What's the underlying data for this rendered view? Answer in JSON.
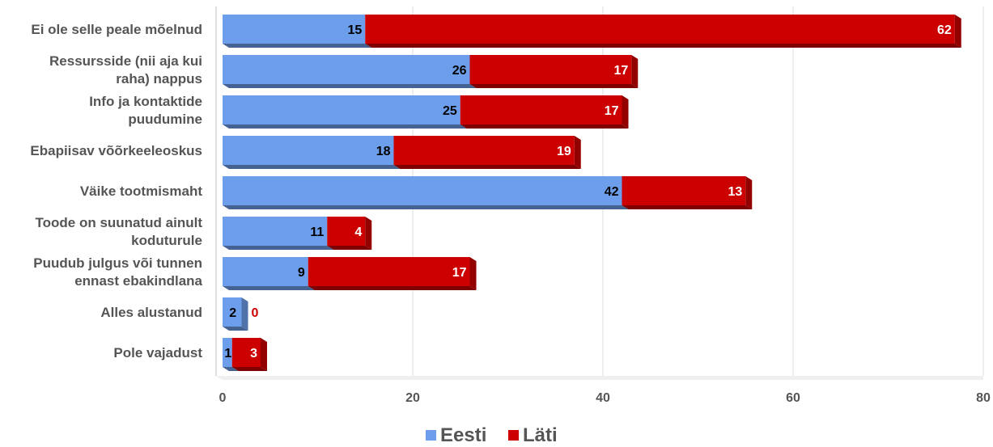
{
  "chart_data": {
    "type": "bar",
    "orientation": "horizontal",
    "stacked": true,
    "style": "3d",
    "categories": [
      "Ei ole selle peale mõelnud",
      "Ressursside (nii aja kui raha) nappus",
      "Info ja kontaktide puudumine",
      "Ebapiisav võõrkeeleoskus",
      "Väike tootmismaht",
      "Toode on suunatud ainult koduturule",
      "Puudub julgus või tunnen ennast ebakindlana",
      "Alles alustanud",
      "Pole vajadust"
    ],
    "category_lines": [
      [
        "Ei ole selle peale mõelnud"
      ],
      [
        "Ressursside (nii aja kui",
        "raha) nappus"
      ],
      [
        "Info ja kontaktide",
        "puudumine"
      ],
      [
        "Ebapiisav võõrkeeleoskus"
      ],
      [
        "Väike tootmismaht"
      ],
      [
        "Toode on suunatud ainult",
        "koduturule"
      ],
      [
        "Puudub julgus või tunnen",
        "ennast ebakindlana"
      ],
      [
        "Alles alustanud"
      ],
      [
        "Pole vajadust"
      ]
    ],
    "series": [
      {
        "name": "Eesti",
        "color": "#6d9eeb",
        "values": [
          15,
          26,
          25,
          18,
          42,
          11,
          9,
          2,
          1
        ],
        "labels": [
          "15",
          "26",
          "25",
          "18",
          "42",
          "11",
          "9",
          "2",
          "1"
        ]
      },
      {
        "name": "Läti",
        "color": "#cc0000",
        "values": [
          62,
          17,
          17,
          19,
          13,
          4,
          17,
          0,
          3
        ],
        "labels": [
          "62",
          "17",
          "17",
          "19",
          "13",
          "4",
          "17",
          "0",
          "3"
        ]
      }
    ],
    "x_ticks": [
      "0",
      "20",
      "40",
      "60",
      "80"
    ],
    "xlim": [
      0,
      80
    ],
    "grid": true,
    "legend": "bottom"
  }
}
